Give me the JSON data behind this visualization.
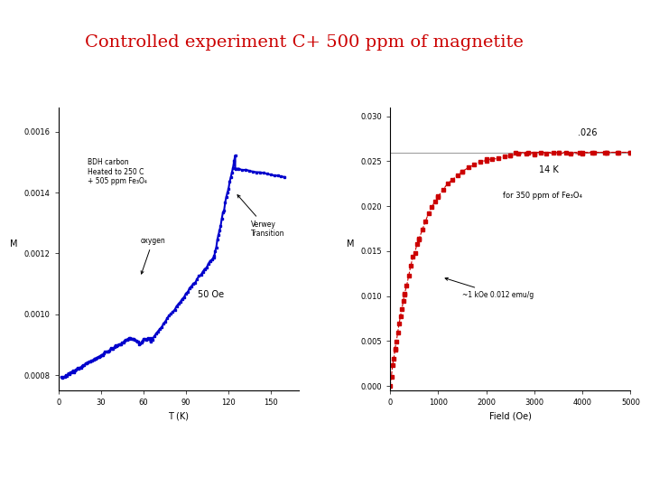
{
  "title": "Controlled experiment C+ 500 ppm of magnetite",
  "title_color": "#cc0000",
  "title_fontsize": 14,
  "bg_color": "#ffffff",
  "left_plot": {
    "xlabel": "T (K)",
    "ylabel": "M",
    "xlim": [
      0,
      170
    ],
    "ylim": [
      0.00075,
      0.00168
    ],
    "yticks": [
      0.0008,
      0.001,
      0.0012,
      0.0014,
      0.0016
    ],
    "ytick_labels": [
      "0.0008",
      "0.0010",
      "0.0012",
      "0.0014",
      "0.0016"
    ],
    "xticks": [
      0,
      30,
      60,
      90,
      120,
      150
    ],
    "line_color": "#0000cc",
    "marker": "s",
    "markersize": 2.0,
    "linewidth": 1.5
  },
  "right_plot": {
    "xlabel": "Field (Oe)",
    "ylabel": "M",
    "xlim": [
      0,
      5000
    ],
    "ylim": [
      -0.0005,
      0.031
    ],
    "yticks": [
      0.0,
      0.005,
      0.01,
      0.015,
      0.02,
      0.025,
      0.03
    ],
    "ytick_labels": [
      "0.000",
      "0.005",
      "0.010",
      "0.015",
      "0.020",
      "0.025",
      "0.030"
    ],
    "xticks": [
      0,
      1000,
      2000,
      3000,
      4000,
      5000
    ],
    "hline_y": 0.026,
    "hline_color": "#888888",
    "line_color": "#cc0000",
    "marker": "s",
    "markersize": 3.5,
    "linewidth": 0.8
  }
}
